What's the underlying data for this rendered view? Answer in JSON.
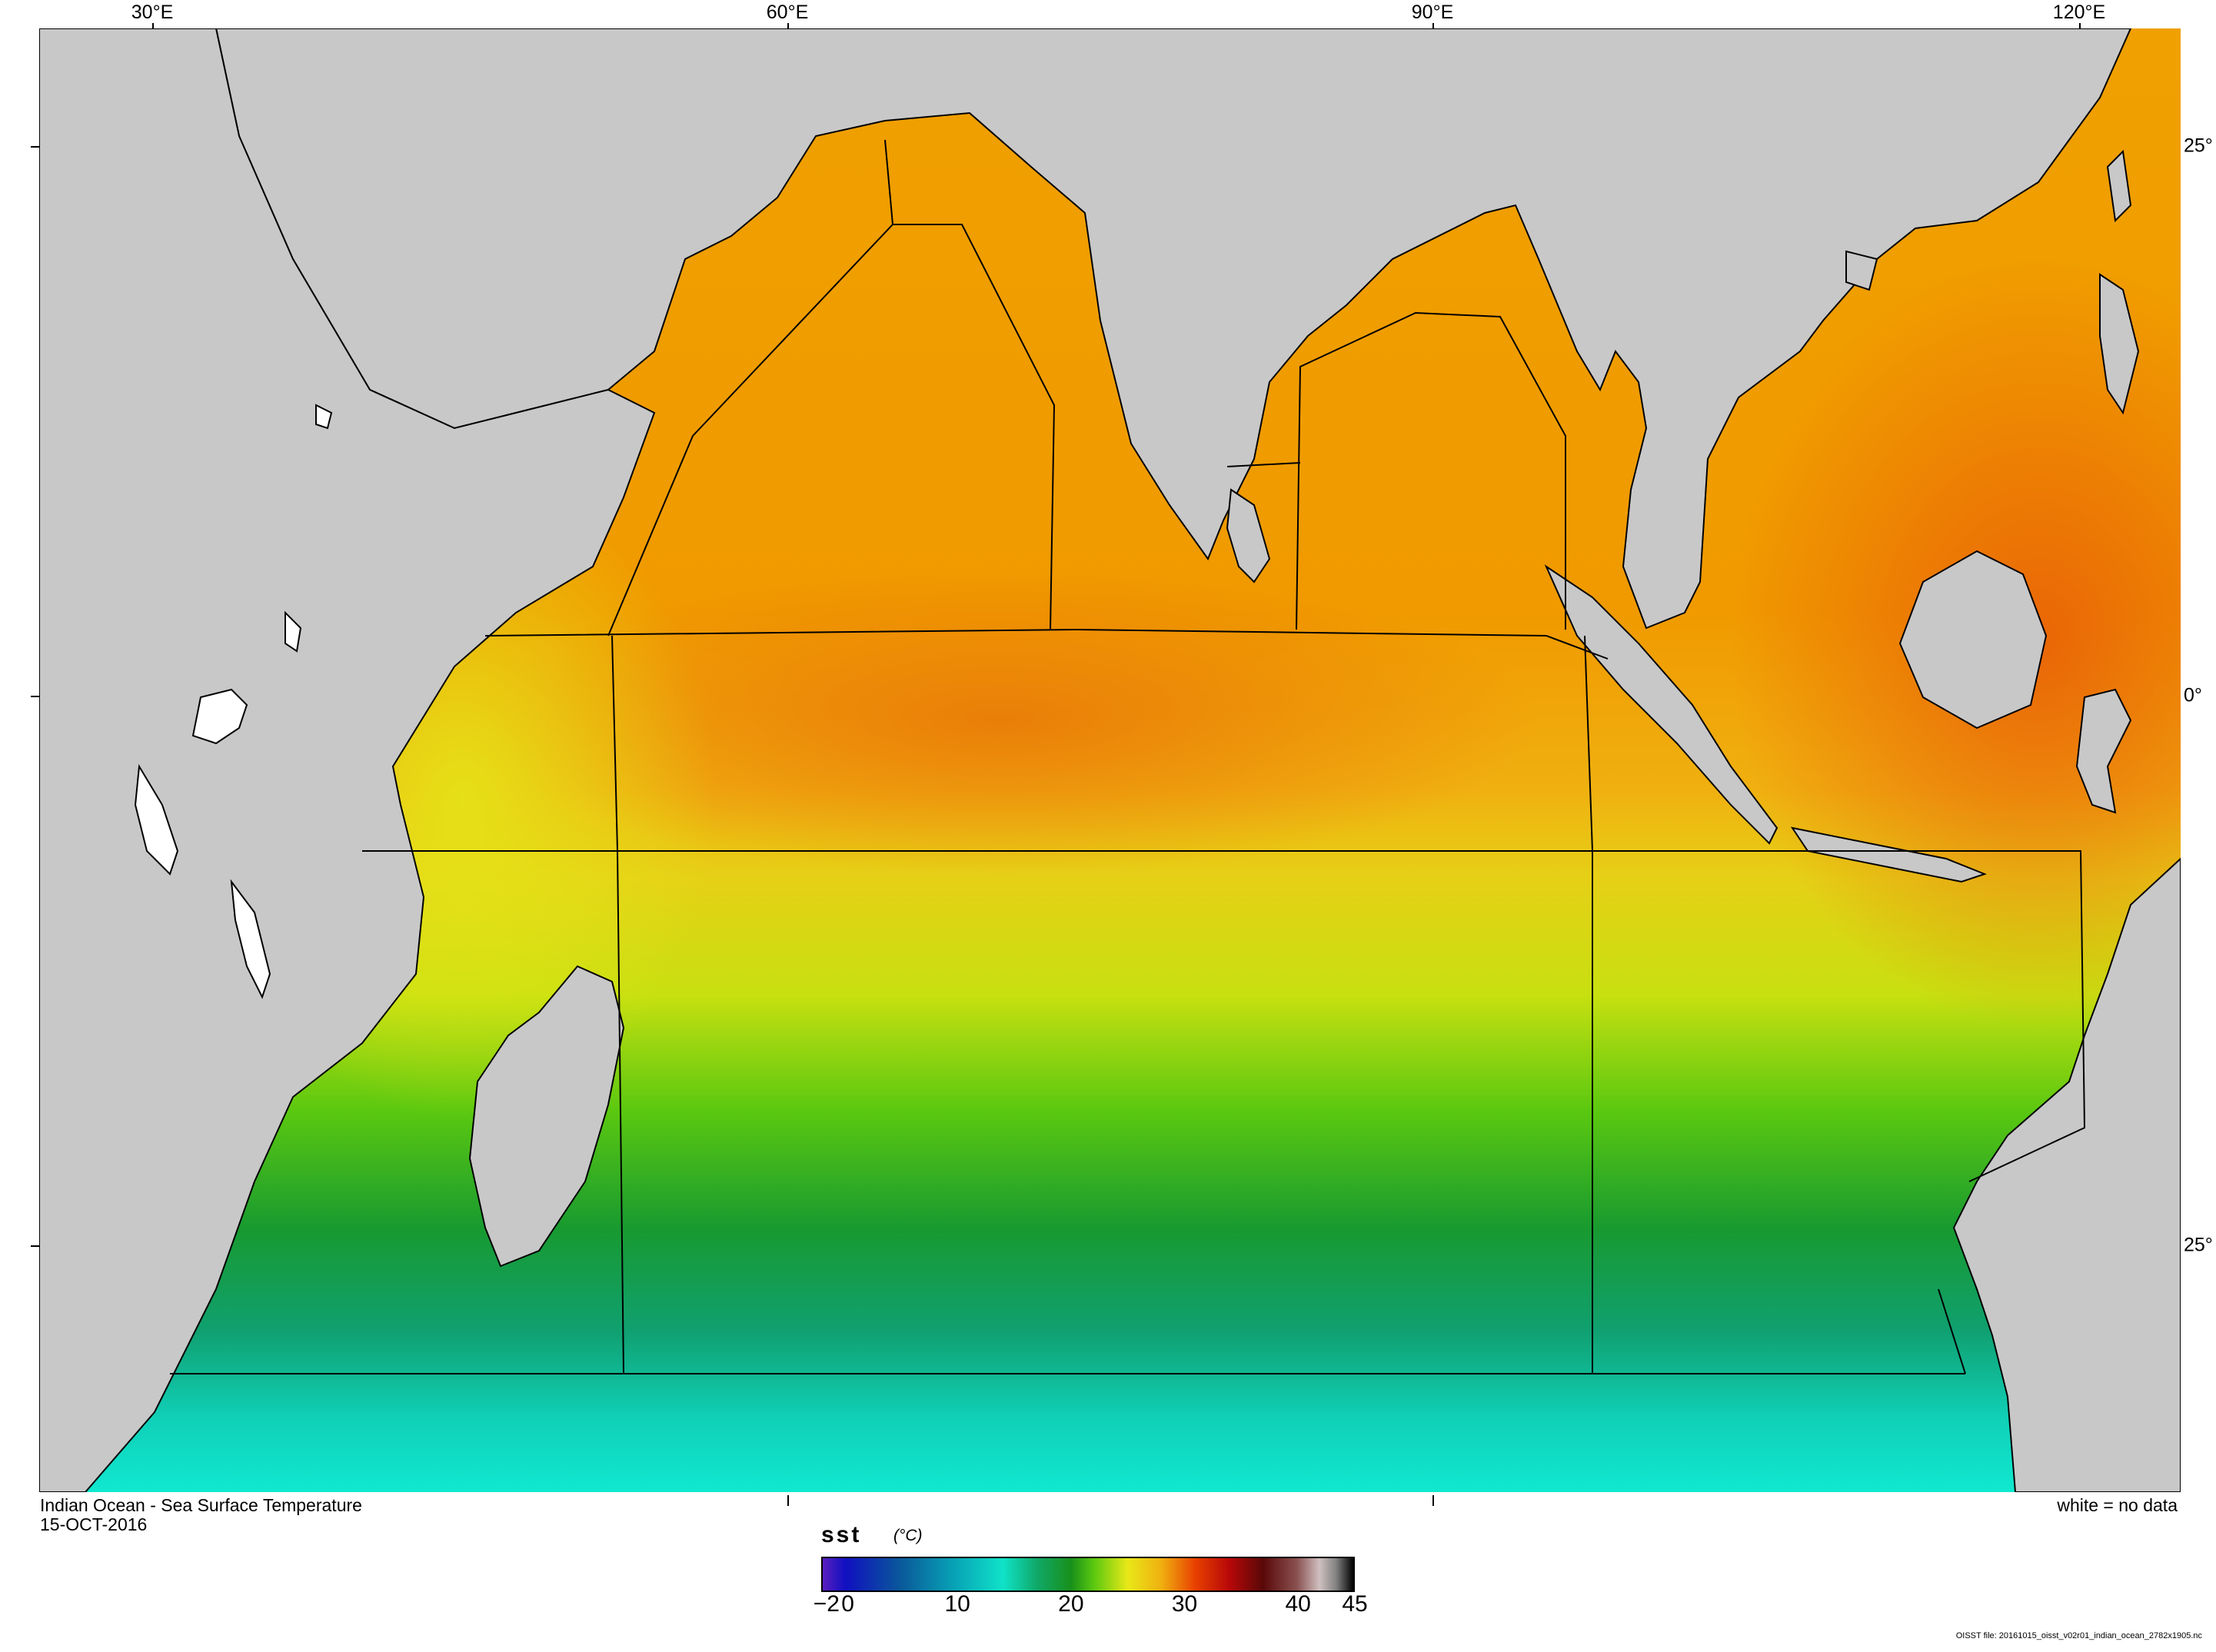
{
  "map": {
    "title": "Indian Ocean - Sea Surface Temperature",
    "date": "15-OCT-2016",
    "no_data_note": "white = no data",
    "footer_file": "OISST file: 20161015_oisst_v02r01_indian_ocean_2782x1905.nc",
    "top_axis_labels": [
      "30°E",
      "60°E",
      "90°E",
      "120°E"
    ],
    "right_axis_labels": [
      "25°",
      "0°",
      "25°"
    ]
  },
  "colorbar": {
    "variable": "sst",
    "units": "(°C)",
    "tick_labels": [
      "−2",
      "0",
      "10",
      "20",
      "30",
      "40",
      "45"
    ],
    "range_min": -2,
    "range_max": 45,
    "stops": [
      {
        "value": -2,
        "color": "#5a1fbf"
      },
      {
        "value": 0,
        "color": "#1010c0"
      },
      {
        "value": 5,
        "color": "#0a5a9a"
      },
      {
        "value": 10,
        "color": "#08a8b8"
      },
      {
        "value": 14,
        "color": "#10e2c8"
      },
      {
        "value": 17,
        "color": "#10a868"
      },
      {
        "value": 20,
        "color": "#18901a"
      },
      {
        "value": 22,
        "color": "#5ac810"
      },
      {
        "value": 25,
        "color": "#e8e818"
      },
      {
        "value": 28,
        "color": "#f0b010"
      },
      {
        "value": 31,
        "color": "#e84000"
      },
      {
        "value": 34,
        "color": "#b80808"
      },
      {
        "value": 37,
        "color": "#5a0808"
      },
      {
        "value": 40,
        "color": "#8a5050"
      },
      {
        "value": 42,
        "color": "#d0c0c0"
      },
      {
        "value": 43.5,
        "color": "#808080"
      },
      {
        "value": 45,
        "color": "#000000"
      }
    ]
  },
  "colors": {
    "land": "#c8c8c8",
    "no_data": "#ffffff",
    "coastline": "#000000"
  }
}
